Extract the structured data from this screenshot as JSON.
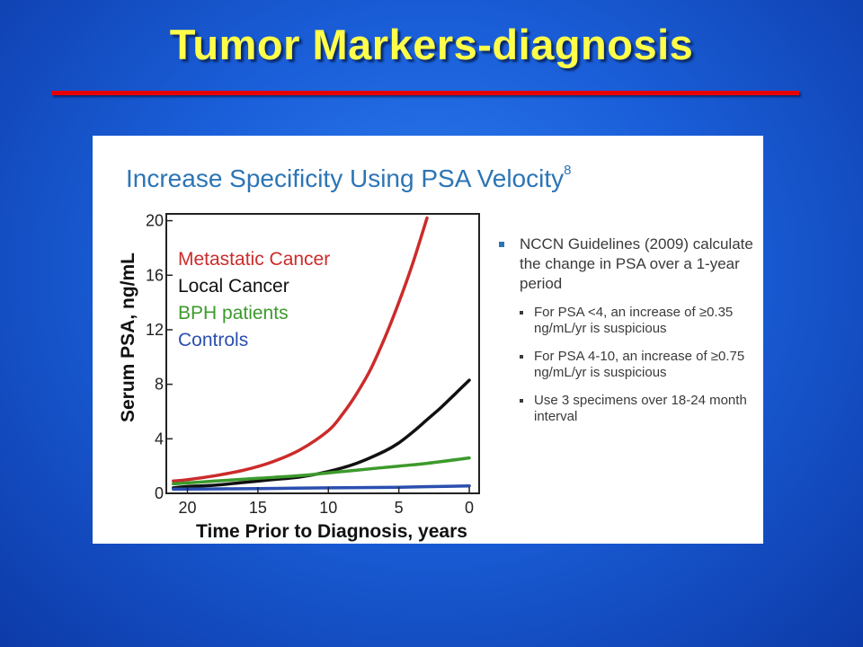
{
  "slide": {
    "title": "Tumor Markers-diagnosis"
  },
  "panel": {
    "heading": "Increase Specificity Using PSA Velocity",
    "heading_superscript": "8"
  },
  "bullets": {
    "main": "NCCN Guidelines (2009) calculate the change in PSA over a 1-year period",
    "subs": [
      "For PSA <4, an increase of ≥0.35 ng/mL/yr is suspicious",
      "For PSA 4-10, an increase of ≥0.75 ng/mL/yr is suspicious",
      "Use 3 specimens over 18-24 month interval"
    ]
  },
  "colors": {
    "background": "#1a5fd9",
    "title": "#ffff4a",
    "title_rule": "#e60000",
    "heading": "#2c75b5"
  },
  "chart_data": {
    "type": "line",
    "xlabel": "Time Prior to Diagnosis, years",
    "ylabel": "Serum PSA, ng/mL",
    "xlim": [
      21.5,
      -0.7
    ],
    "ylim": [
      0,
      20.5
    ],
    "x_ticks": [
      20,
      15,
      10,
      5,
      0
    ],
    "y_ticks": [
      0,
      4,
      8,
      12,
      16,
      20
    ],
    "grid": false,
    "legend_position": "top-left",
    "series": [
      {
        "name": "Metastatic Cancer",
        "color": "#cc2b2b",
        "x": [
          21,
          20,
          18,
          16,
          14,
          12,
          10,
          9,
          8,
          7,
          6,
          5,
          4,
          3
        ],
        "y": [
          0.9,
          1.0,
          1.3,
          1.7,
          2.3,
          3.2,
          4.6,
          5.8,
          7.3,
          9.1,
          11.4,
          14.0,
          16.9,
          20.2
        ]
      },
      {
        "name": "Local Cancer",
        "color": "#111111",
        "x": [
          21,
          20,
          18,
          16,
          14,
          12,
          10,
          8,
          6,
          5,
          4,
          3,
          2,
          1,
          0
        ],
        "y": [
          0.4,
          0.5,
          0.6,
          0.8,
          1.0,
          1.2,
          1.6,
          2.2,
          3.1,
          3.7,
          4.5,
          5.4,
          6.3,
          7.3,
          8.3
        ]
      },
      {
        "name": "BPH patients",
        "color": "#3c9a2c",
        "x": [
          21,
          18,
          15,
          12,
          10,
          8,
          5,
          3,
          0
        ],
        "y": [
          0.7,
          0.9,
          1.1,
          1.3,
          1.5,
          1.7,
          2.0,
          2.2,
          2.6
        ]
      },
      {
        "name": "Controls",
        "color": "#2b4fb0",
        "x": [
          21,
          15,
          10,
          5,
          0
        ],
        "y": [
          0.3,
          0.35,
          0.4,
          0.45,
          0.55
        ]
      }
    ]
  }
}
